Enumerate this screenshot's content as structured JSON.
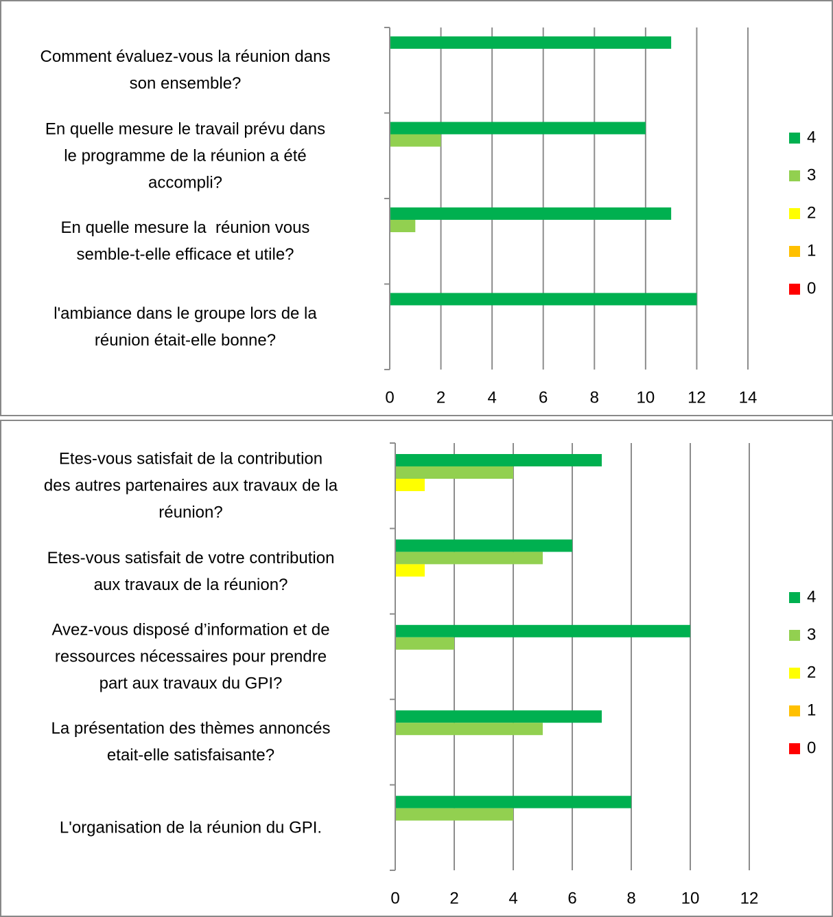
{
  "chart_data": [
    {
      "type": "bar",
      "orientation": "horizontal",
      "categories": [
        "Comment évaluez-vous la réunion dans\nson ensemble?",
        "En quelle mesure le travail prévu dans\nle programme de la réunion a été\naccompli?",
        "En quelle mesure la  réunion vous\nsemble-t-elle efficace et utile?",
        "l'ambiance dans le groupe lors de la\nréunion était-elle bonne?"
      ],
      "series": [
        {
          "name": "4",
          "color": "#00b050",
          "values": [
            11,
            10,
            11,
            12
          ]
        },
        {
          "name": "3",
          "color": "#92d050",
          "values": [
            0,
            2,
            1,
            0
          ]
        },
        {
          "name": "2",
          "color": "#ffff00",
          "values": [
            0,
            0,
            0,
            0
          ]
        },
        {
          "name": "1",
          "color": "#ffc000",
          "values": [
            0,
            0,
            0,
            0
          ]
        },
        {
          "name": "0",
          "color": "#ff0000",
          "values": [
            0,
            0,
            0,
            0
          ]
        }
      ],
      "xlim": [
        0,
        14
      ],
      "xticks": [
        0,
        2,
        4,
        6,
        8,
        10,
        12,
        14
      ],
      "grid": true,
      "legend": "right"
    },
    {
      "type": "bar",
      "orientation": "horizontal",
      "categories": [
        "Etes-vous satisfait de la contribution\ndes autres partenaires aux travaux de la\nréunion?",
        "Etes-vous satisfait de votre contribution\naux travaux de la réunion?",
        "Avez-vous disposé d’information et de\nressources nécessaires pour prendre\npart aux travaux du GPI?",
        "La présentation des thèmes annoncés\netait-elle satisfaisante?",
        "L'organisation de la réunion du GPI."
      ],
      "series": [
        {
          "name": "4",
          "color": "#00b050",
          "values": [
            7,
            6,
            10,
            7,
            8
          ]
        },
        {
          "name": "3",
          "color": "#92d050",
          "values": [
            4,
            5,
            2,
            5,
            4
          ]
        },
        {
          "name": "2",
          "color": "#ffff00",
          "values": [
            1,
            1,
            0,
            0,
            0
          ]
        },
        {
          "name": "1",
          "color": "#ffc000",
          "values": [
            0,
            0,
            0,
            0,
            0
          ]
        },
        {
          "name": "0",
          "color": "#ff0000",
          "values": [
            0,
            0,
            0,
            0,
            0
          ]
        }
      ],
      "xlim": [
        0,
        12
      ],
      "xticks": [
        0,
        2,
        4,
        6,
        8,
        10,
        12
      ],
      "grid": true,
      "legend": "right"
    }
  ]
}
